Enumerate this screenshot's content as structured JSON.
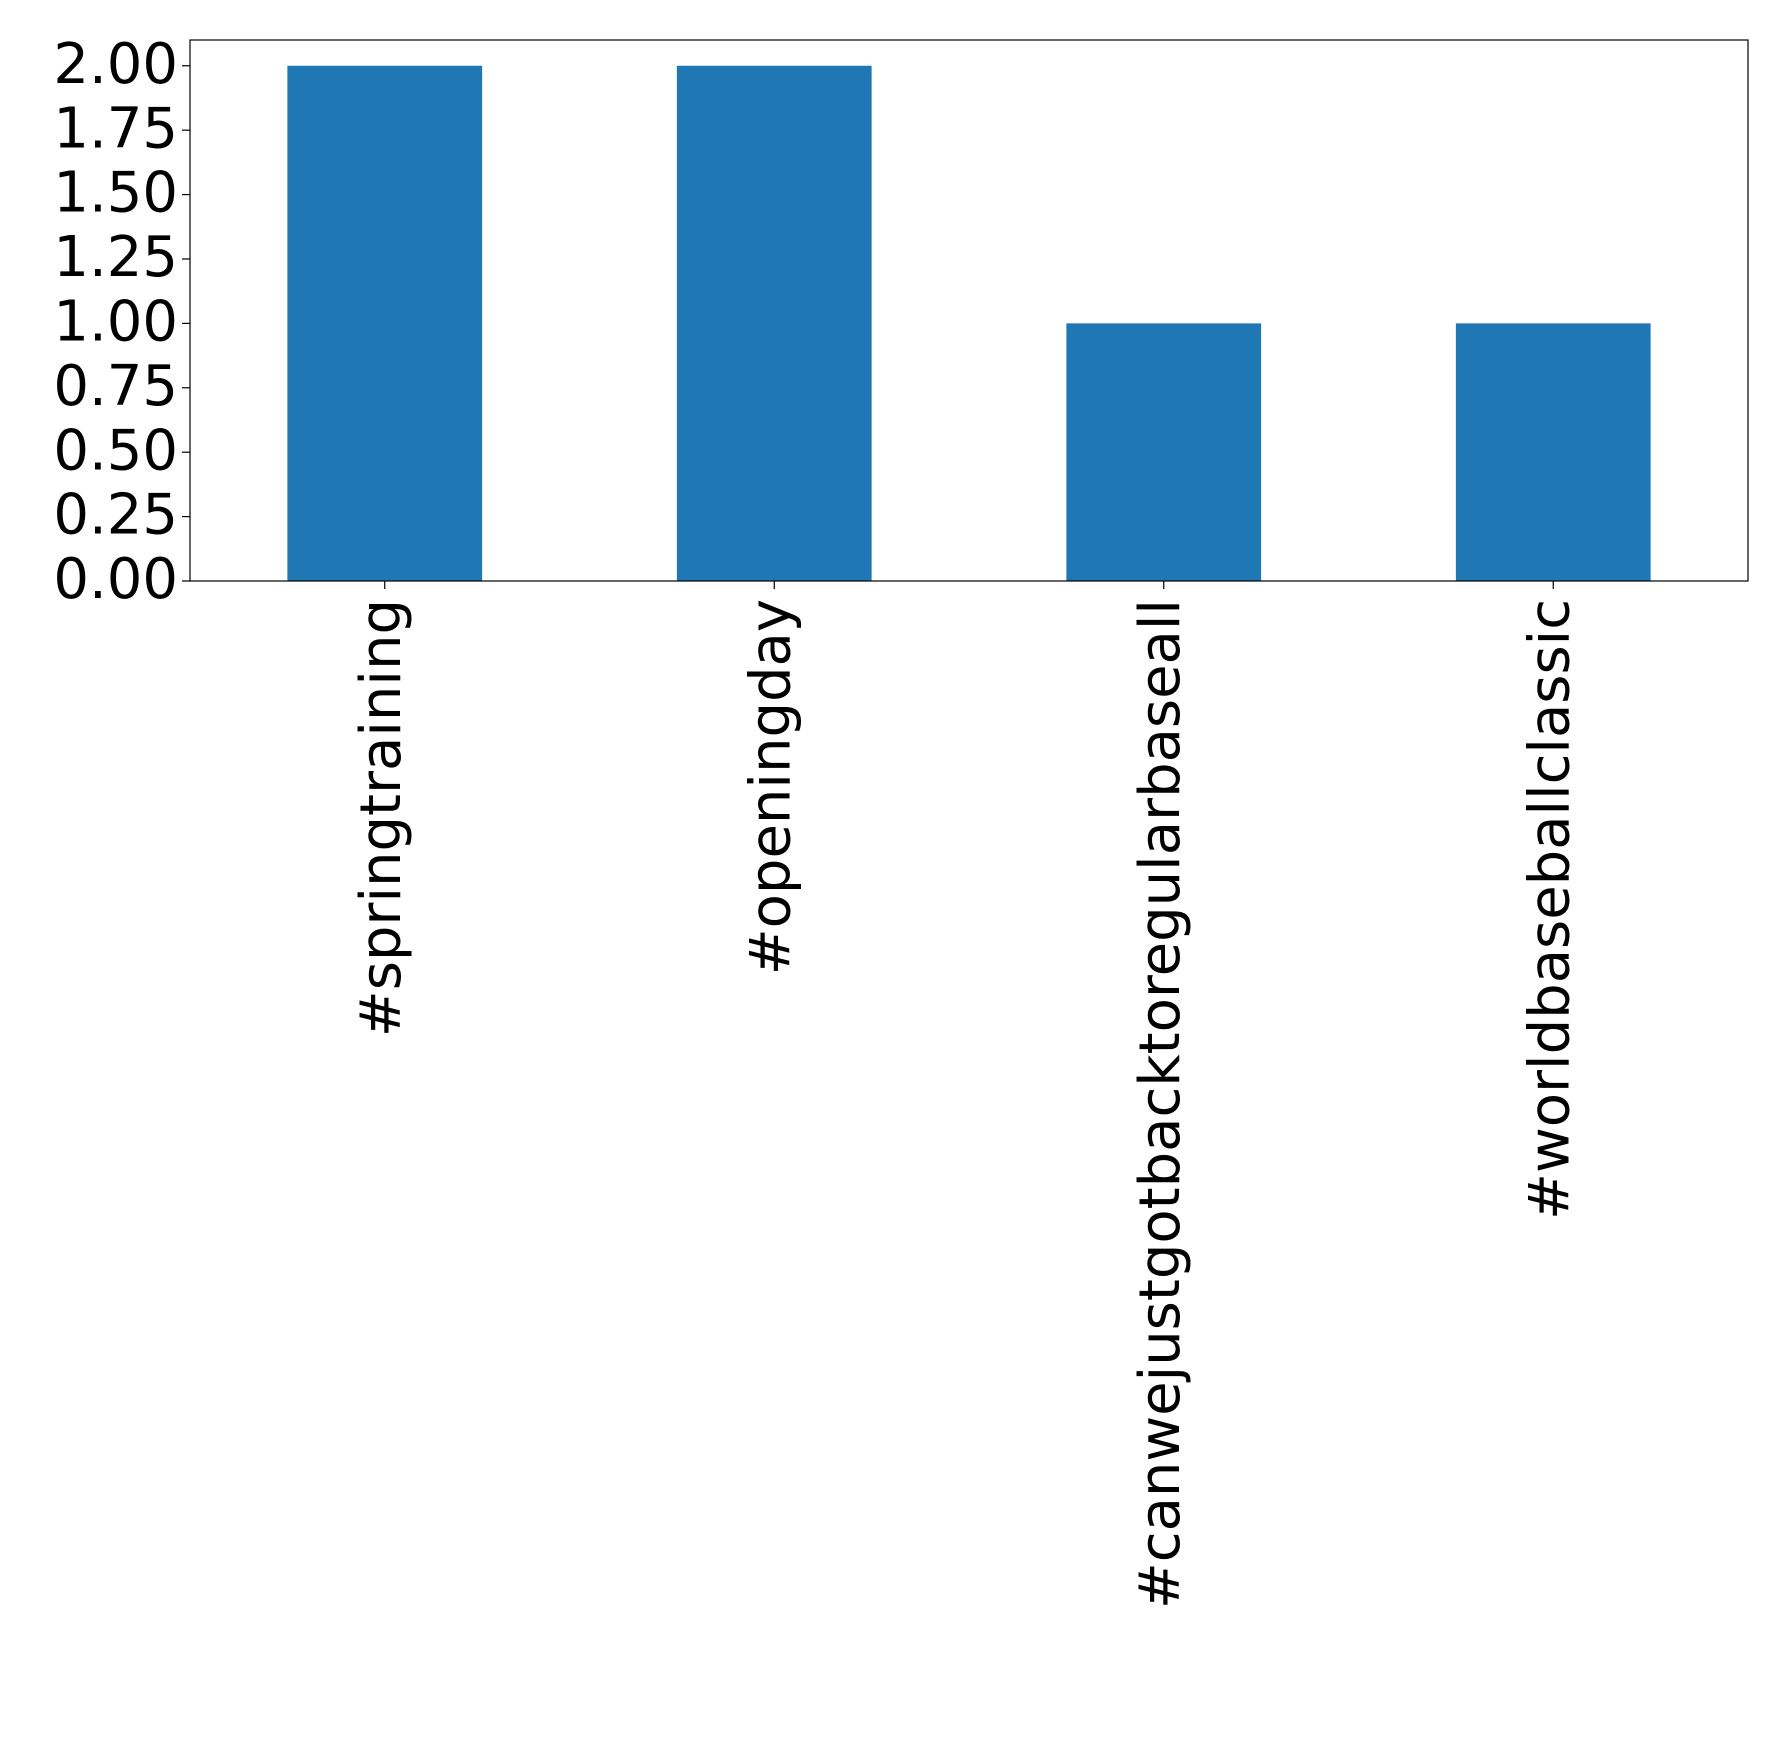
{
  "chart_data": {
    "type": "bar",
    "categories": [
      "#springtraining",
      "#openingday",
      "#canwejustgotbacktoregularbaseall",
      "#worldbaseballclassic"
    ],
    "values": [
      2,
      2,
      1,
      1
    ],
    "color": "#1f77b4",
    "ylim": [
      0,
      2.1
    ],
    "yticks": [
      {
        "value": 0,
        "label": "0.00"
      },
      {
        "value": 0.25,
        "label": "0.25"
      },
      {
        "value": 0.5,
        "label": "0.50"
      },
      {
        "value": 0.75,
        "label": "0.75"
      },
      {
        "value": 1,
        "label": "1.00"
      },
      {
        "value": 1.25,
        "label": "1.25"
      },
      {
        "value": 1.5,
        "label": "1.50"
      },
      {
        "value": 1.75,
        "label": "1.75"
      },
      {
        "value": 2,
        "label": "2.00"
      }
    ],
    "grid": false
  }
}
